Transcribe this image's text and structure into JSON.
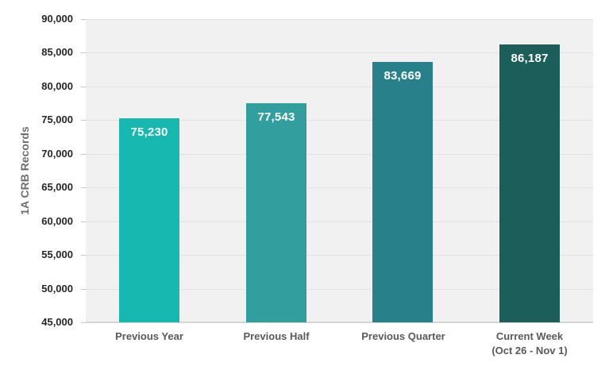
{
  "chart_data": {
    "type": "bar",
    "title": "",
    "xlabel": "",
    "ylabel": "1A CRB Records",
    "ylim": [
      45000,
      90000
    ],
    "ytick_step": 5000,
    "ytick_labels": [
      "45,000",
      "50,000",
      "55,000",
      "60,000",
      "65,000",
      "70,000",
      "75,000",
      "80,000",
      "85,000",
      "90,000"
    ],
    "categories": [
      {
        "lines": [
          "Previous Year"
        ]
      },
      {
        "lines": [
          "Previous Half"
        ]
      },
      {
        "lines": [
          "Previous Quarter"
        ]
      },
      {
        "lines": [
          "Current Week",
          "(Oct 26 - Nov 1)"
        ]
      }
    ],
    "values": [
      75230,
      77543,
      83669,
      86187
    ],
    "value_labels": [
      "75,230",
      "77,543",
      "83,669",
      "86,187"
    ],
    "bar_colors": [
      "#17B8B0",
      "#339E9E",
      "#28808A",
      "#1C5F5A"
    ],
    "grid": true,
    "legend": false
  },
  "appearance": {
    "page_bg": "#FFFFFF",
    "plot_bg": "#F1F1F2",
    "gridline_color": "#E2E2E3",
    "axis_line_color": "#D5D5D6",
    "tick_color": "#C9C9C9",
    "ytick_text_color": "#262626",
    "category_text_color": "#595959",
    "ylabel_text_color": "#6E6E6E",
    "value_label_text_color": "#FFFFFF"
  }
}
